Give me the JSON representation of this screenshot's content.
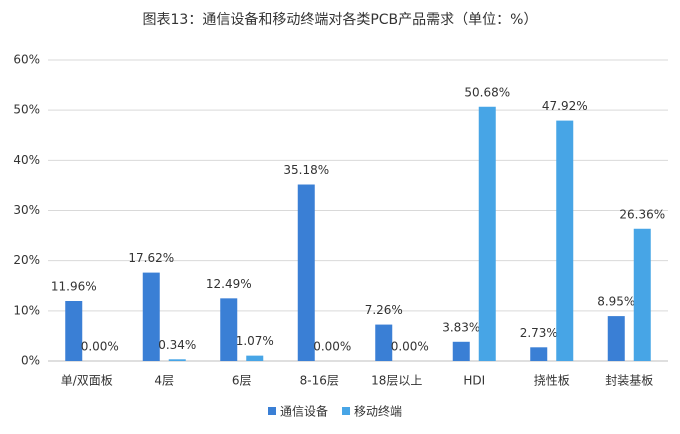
{
  "chart_data": {
    "type": "bar",
    "title": "图表13：通信设备和移动终端对各类PCB产品需求（单位：%）",
    "categories": [
      "单/双面板",
      "4层",
      "6层",
      "8-16层",
      "18层以上",
      "HDI",
      "挠性板",
      "封装基板"
    ],
    "series": [
      {
        "name": "通信设备",
        "color": "#3a7fd5",
        "values": [
          11.96,
          17.62,
          12.49,
          35.18,
          7.26,
          3.83,
          2.73,
          8.95
        ],
        "value_labels": [
          "11.96%",
          "17.62%",
          "12.49%",
          "35.18%",
          "7.26%",
          "3.83%",
          "2.73%",
          "8.95%"
        ]
      },
      {
        "name": "移动终端",
        "color": "#47a5e6",
        "values": [
          0,
          0.34,
          1.07,
          0,
          0,
          50.68,
          47.92,
          26.36
        ],
        "value_labels": [
          "0.00%",
          "0.34%",
          "1.07%",
          "0.00%",
          "0.00%",
          "50.68%",
          "47.92%",
          "26.36%"
        ]
      }
    ],
    "ylim": [
      0,
      60
    ],
    "yticks": [
      {
        "value": 0,
        "label": "0%"
      },
      {
        "value": 10,
        "label": "10%"
      },
      {
        "value": 20,
        "label": "20%"
      },
      {
        "value": 30,
        "label": "30%"
      },
      {
        "value": 40,
        "label": "40%"
      },
      {
        "value": 50,
        "label": "50%"
      },
      {
        "value": 60,
        "label": "60%"
      }
    ],
    "grid": true
  }
}
